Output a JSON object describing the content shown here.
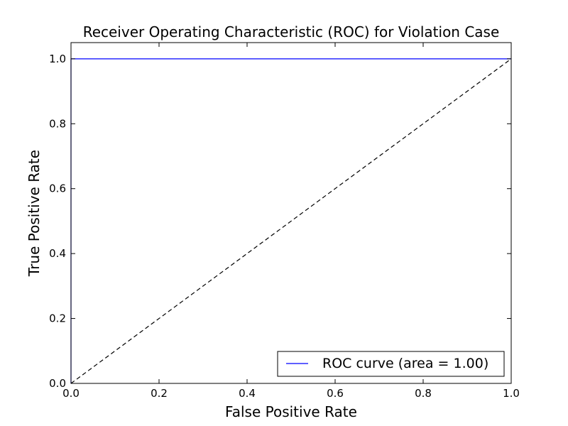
{
  "chart_data": {
    "type": "line",
    "title": "Receiver Operating Characteristic (ROC) for Violation Case",
    "xlabel": "False Positive Rate",
    "ylabel": "True Positive Rate",
    "xlim": [
      0.0,
      1.0
    ],
    "ylim": [
      0.0,
      1.05
    ],
    "xticks": [
      0.0,
      0.2,
      0.4,
      0.6,
      0.8,
      1.0
    ],
    "xtick_labels": [
      "0.0",
      "0.2",
      "0.4",
      "0.6",
      "0.8",
      "1.0"
    ],
    "yticks": [
      0.0,
      0.2,
      0.4,
      0.6,
      0.8,
      1.0
    ],
    "ytick_labels": [
      "0.0",
      "0.2",
      "0.4",
      "0.6",
      "0.8",
      "1.0"
    ],
    "grid": false,
    "legend_position": "lower-right",
    "series": [
      {
        "name": "ROC curve (area = 1.00)",
        "color": "#0000ff",
        "style": "solid",
        "x": [
          0.0,
          0.0,
          1.0
        ],
        "y": [
          0.0,
          1.0,
          1.0
        ]
      },
      {
        "color": "#000000",
        "style": "dashed",
        "x": [
          0.0,
          1.0
        ],
        "y": [
          0.0,
          1.0
        ]
      }
    ]
  }
}
